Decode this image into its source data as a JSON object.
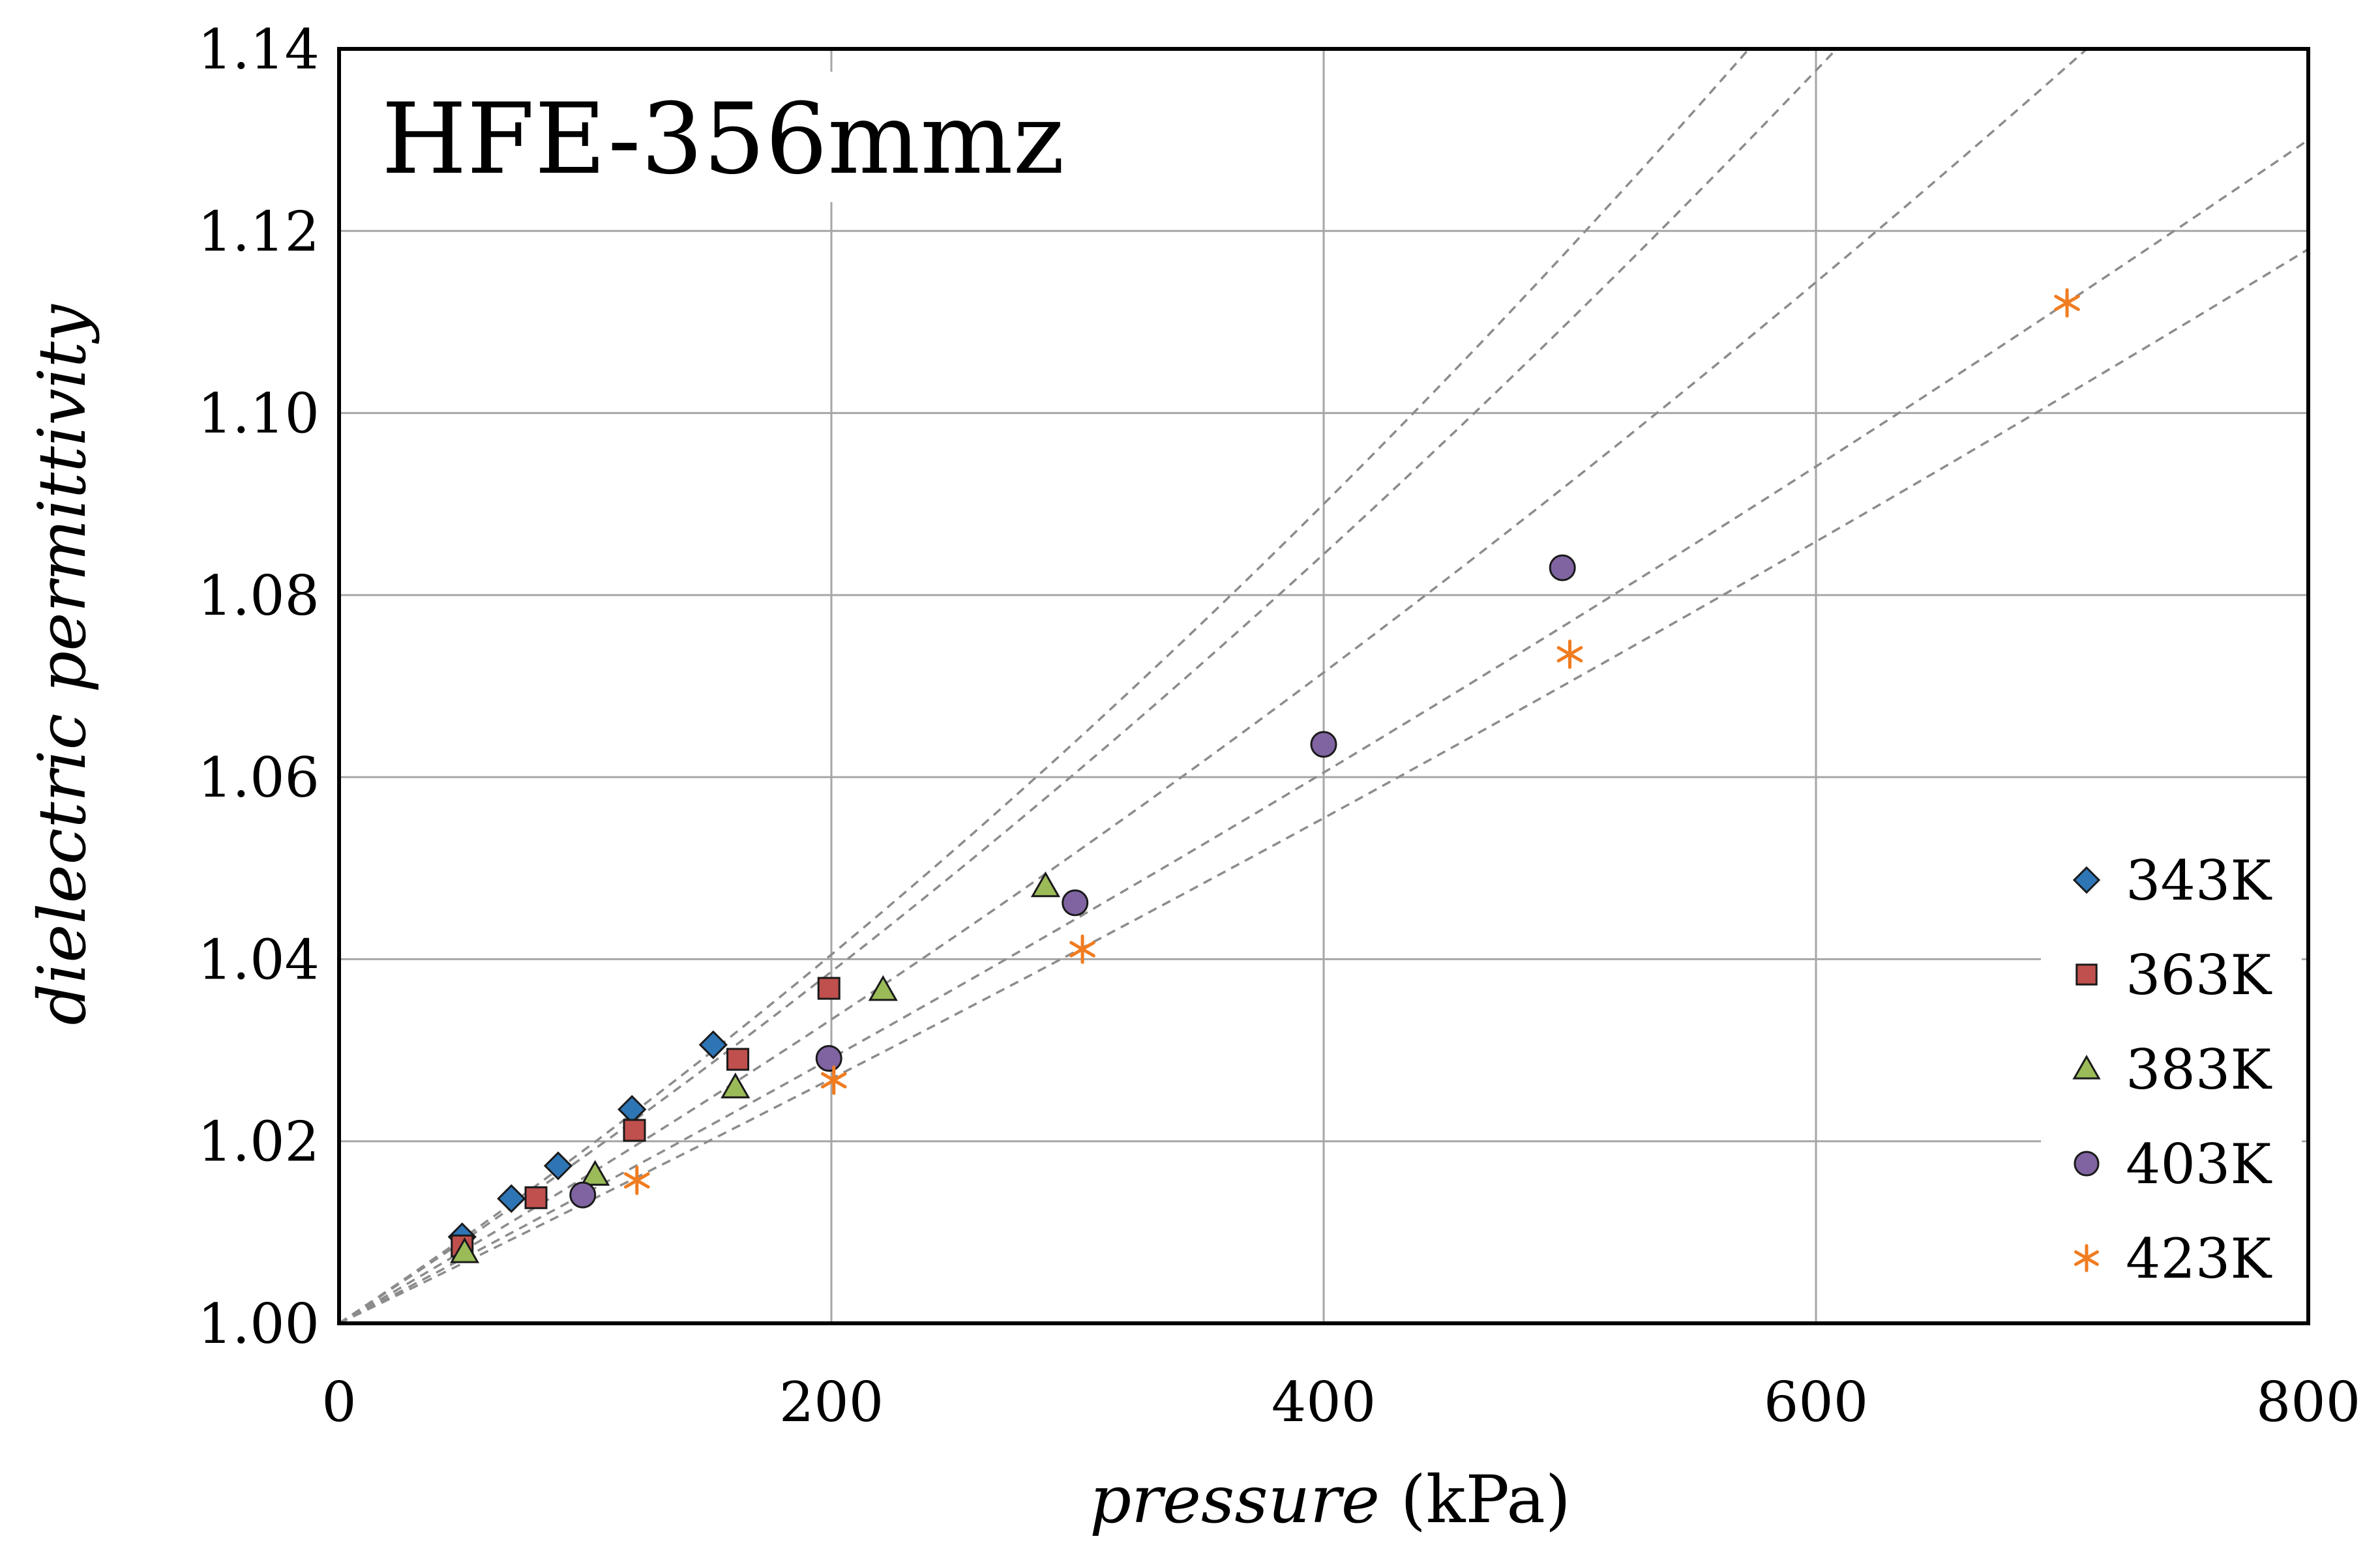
{
  "chart_data": {
    "type": "scatter",
    "title": "HFE-356mmz",
    "xlabel_italic": "pressure",
    "xlabel_unit": " (kPa)",
    "ylabel": "dielectric permittivity",
    "xlim": [
      0,
      800
    ],
    "ylim": [
      1.0,
      1.14
    ],
    "xticks": [
      "0",
      "200",
      "400",
      "600",
      "800"
    ],
    "yticks": [
      "1.00",
      "1.02",
      "1.04",
      "1.06",
      "1.08",
      "1.10",
      "1.12",
      "1.14"
    ],
    "grid": true,
    "legend_position": "right",
    "series": [
      {
        "name": "343K",
        "marker": "diamond",
        "color": "#2e75b6",
        "x": [
          50,
          70,
          89,
          119,
          152
        ],
        "y": [
          1.0095,
          1.0137,
          1.0173,
          1.0235,
          1.0306
        ],
        "fit_slope_end": [
          0.00018,
          0.00036
        ]
      },
      {
        "name": "363K",
        "marker": "square",
        "color": "#c0504d",
        "x": [
          50,
          80,
          120,
          162,
          199
        ],
        "y": [
          1.0085,
          1.0138,
          1.0212,
          1.029,
          1.0368
        ],
        "fit_slope_end": [
          0.000175,
          0.00032
        ]
      },
      {
        "name": "383K",
        "marker": "triangle",
        "color": "#9bbb59",
        "x": [
          51,
          104,
          161,
          221,
          287
        ],
        "y": [
          1.0078,
          1.0163,
          1.0259,
          1.0366,
          1.048
        ],
        "fit_slope_end": [
          0.000155,
          0.00025
        ]
      },
      {
        "name": "403K",
        "marker": "circle",
        "color": "#8064a2",
        "x": [
          99,
          199,
          299,
          400,
          497
        ],
        "y": [
          1.0141,
          1.0291,
          1.0462,
          1.0636,
          1.083
        ],
        "fit_slope_end": [
          0.00014,
          0.000185
        ]
      },
      {
        "name": "423K",
        "marker": "star",
        "color": "#f07c20",
        "x": [
          121,
          201,
          302,
          500,
          702
        ],
        "y": [
          1.0157,
          1.0267,
          1.0411,
          1.0735,
          1.1121
        ],
        "fit_slope_end": [
          0.00013,
          0.000165
        ]
      }
    ]
  }
}
